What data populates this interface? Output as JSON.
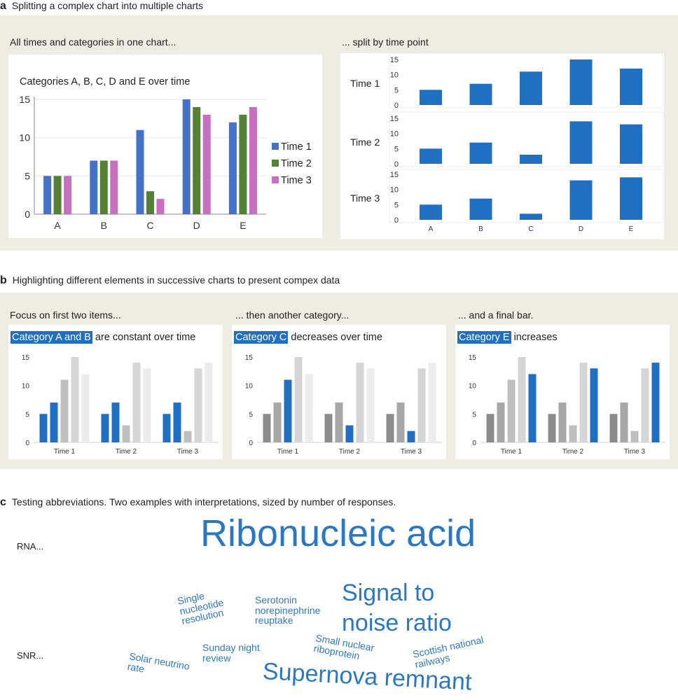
{
  "section_a": {
    "letter": "a",
    "title": "Splitting a complex chart into multiple charts",
    "left_subtitle": "All times and categories in one chart...",
    "right_subtitle": "... split by time point"
  },
  "section_b": {
    "letter": "b",
    "title": "Highlighting different elements in successive charts to present compex data",
    "panels": [
      {
        "subtitle": "Focus on first two items...",
        "highlight": "Category A and B",
        "rest": "are constant over time"
      },
      {
        "subtitle": "... then another category...",
        "highlight": "Category C",
        "rest": "decreases over time"
      },
      {
        "subtitle": "... and a final bar.",
        "highlight": "Category E",
        "rest": "increases"
      }
    ]
  },
  "section_c": {
    "letter": "c",
    "title": "Testing abbreviations. Two examples with interpretations, sized by number of responses.",
    "rna": {
      "label": "RNA...",
      "words": [
        "Ribonucleic acid"
      ]
    },
    "snr": {
      "label": "SNR...",
      "words": [
        "Single nucleotide resolution",
        "Serotonin norepinephrine reuptake",
        "Signal to noise ratio",
        "Sunday night review",
        "Small nuclear riboprotein",
        "Scottish national railways",
        "Solar neutrino rate",
        "Supernova remnant"
      ]
    }
  },
  "colors": {
    "time1": "#4472c4",
    "time2": "#548235",
    "time3": "#c76fc0",
    "highlight": "#1f6fc3",
    "word": "#2b78c2",
    "band": "#eeede4"
  },
  "chart_data": [
    {
      "type": "bar",
      "title": "Categories A, B, C, D and E over time",
      "categories": [
        "A",
        "B",
        "C",
        "D",
        "E"
      ],
      "series": [
        {
          "name": "Time 1",
          "values": [
            5,
            7,
            11,
            15,
            12
          ]
        },
        {
          "name": "Time 2",
          "values": [
            5,
            7,
            3,
            14,
            13
          ]
        },
        {
          "name": "Time 3",
          "values": [
            5,
            7,
            2,
            13,
            14
          ]
        }
      ],
      "yticks": [
        0,
        5,
        10,
        15
      ],
      "ylim": [
        0,
        15
      ],
      "legend": "right"
    },
    {
      "type": "bar",
      "layout": "small-multiples",
      "categories": [
        "A",
        "B",
        "C",
        "D",
        "E"
      ],
      "rows": [
        {
          "label": "Time 1",
          "values": [
            5,
            7,
            11,
            15,
            12
          ]
        },
        {
          "label": "Time 2",
          "values": [
            5,
            7,
            3,
            14,
            13
          ]
        },
        {
          "label": "Time 3",
          "values": [
            5,
            7,
            2,
            13,
            14
          ]
        }
      ],
      "yticks": [
        0,
        5,
        10,
        15
      ],
      "ylim": [
        0,
        15
      ]
    },
    {
      "type": "bar",
      "groups": [
        "Time 1",
        "Time 2",
        "Time 3"
      ],
      "group_values": [
        [
          5,
          7,
          11,
          15,
          12
        ],
        [
          5,
          7,
          3,
          14,
          13
        ],
        [
          5,
          7,
          2,
          13,
          14
        ]
      ],
      "highlighted_categories": [
        "A",
        "B"
      ],
      "yticks": [
        0,
        5,
        10,
        15
      ],
      "ylim": [
        0,
        15
      ]
    },
    {
      "type": "bar",
      "groups": [
        "Time 1",
        "Time 2",
        "Time 3"
      ],
      "group_values": [
        [
          5,
          7,
          11,
          15,
          12
        ],
        [
          5,
          7,
          3,
          14,
          13
        ],
        [
          5,
          7,
          2,
          13,
          14
        ]
      ],
      "highlighted_categories": [
        "C"
      ],
      "yticks": [
        0,
        5,
        10,
        15
      ],
      "ylim": [
        0,
        15
      ]
    },
    {
      "type": "bar",
      "groups": [
        "Time 1",
        "Time 2",
        "Time 3"
      ],
      "group_values": [
        [
          5,
          7,
          11,
          15,
          12
        ],
        [
          5,
          7,
          3,
          14,
          13
        ],
        [
          5,
          7,
          2,
          13,
          14
        ]
      ],
      "highlighted_categories": [
        "E"
      ],
      "yticks": [
        0,
        5,
        10,
        15
      ],
      "ylim": [
        0,
        15
      ]
    }
  ]
}
